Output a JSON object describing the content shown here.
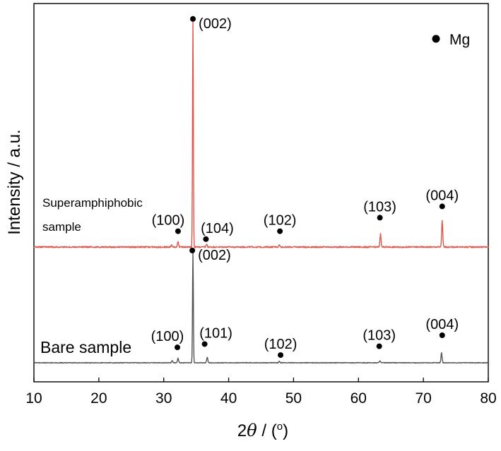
{
  "chart_data": {
    "type": "line",
    "xlabel": "2θ / (°)",
    "xlabel_parts": {
      "prefix": "2",
      "theta": "θ",
      "suffix": " / (",
      "degree": "o",
      "close": ")"
    },
    "ylabel": "Intensity / a.u.",
    "xlim": [
      10,
      80
    ],
    "xticks": [
      10,
      20,
      30,
      40,
      50,
      60,
      70,
      80
    ],
    "yticks_shown": false,
    "legend": {
      "position": "top-right",
      "marker": "filled-circle",
      "label": "Mg"
    },
    "series": [
      {
        "name": "Superamphiphobic sample",
        "label_lines": [
          "Superamphiphobic",
          "sample"
        ],
        "color": "#e0564a",
        "baseline": 0,
        "peaks": [
          {
            "x": 31.2,
            "y": 0.01
          },
          {
            "x": 32.2,
            "y": 0.025
          },
          {
            "x": 34.5,
            "y": 1.0
          },
          {
            "x": 36.6,
            "y": 0.012
          },
          {
            "x": 47.8,
            "y": 0.01
          },
          {
            "x": 63.4,
            "y": 0.058
          },
          {
            "x": 72.9,
            "y": 0.115
          }
        ],
        "annotations": [
          {
            "label": "(002)",
            "x": 34.5,
            "marker_y": 1.01
          },
          {
            "label": "(100)",
            "x": 32.2,
            "marker_y": 0.07
          },
          {
            "label": "(104)",
            "x": 36.5,
            "marker_y": 0.035
          },
          {
            "label": "(102)",
            "x": 47.9,
            "marker_y": 0.07
          },
          {
            "label": "(103)",
            "x": 63.3,
            "marker_y": 0.13
          },
          {
            "label": "(004)",
            "x": 72.9,
            "marker_y": 0.18
          }
        ]
      },
      {
        "name": "Bare sample",
        "label_lines": [
          "Bare sample"
        ],
        "color": "#555555",
        "baseline": 0,
        "peaks": [
          {
            "x": 31.3,
            "y": 0.02
          },
          {
            "x": 32.2,
            "y": 0.04
          },
          {
            "x": 34.5,
            "y": 1.0
          },
          {
            "x": 36.7,
            "y": 0.05
          },
          {
            "x": 47.8,
            "y": 0.012
          },
          {
            "x": 63.3,
            "y": 0.02
          },
          {
            "x": 72.8,
            "y": 0.09
          }
        ],
        "annotations": [
          {
            "label": "(002)",
            "x": 34.4,
            "marker_y": 1.02
          },
          {
            "label": "(100)",
            "x": 32.1,
            "marker_y": 0.14
          },
          {
            "label": "(101)",
            "x": 36.3,
            "marker_y": 0.17
          },
          {
            "label": "(102)",
            "x": 48.0,
            "marker_y": 0.07
          },
          {
            "label": "(103)",
            "x": 63.2,
            "marker_y": 0.15
          },
          {
            "label": "(004)",
            "x": 72.9,
            "marker_y": 0.25
          }
        ]
      }
    ]
  }
}
